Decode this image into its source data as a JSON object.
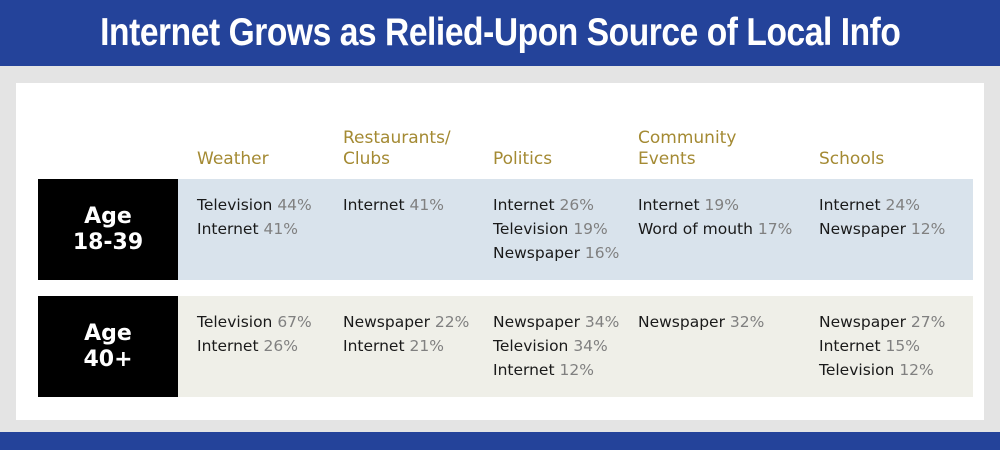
{
  "title": "Internet Grows as Relied-Upon Source of Local Info",
  "colors": {
    "title_bar": "#24439a",
    "header_text": "#a48a33",
    "row1_band": "#d9e3ec",
    "row2_band": "#efefe8",
    "age_box": "#000000",
    "percent_text": "#808080"
  },
  "chart_data": {
    "type": "table",
    "columns": [
      "Weather",
      "Restaurants/\nClubs",
      "Politics",
      "Community\nEvents",
      "Schools"
    ],
    "rows": [
      {
        "label_line1": "Age",
        "label_line2": "18-39",
        "cells": [
          [
            {
              "source": "Television",
              "pct": "44%"
            },
            {
              "source": "Internet",
              "pct": "41%"
            }
          ],
          [
            {
              "source": "Internet",
              "pct": "41%"
            }
          ],
          [
            {
              "source": "Internet",
              "pct": "26%"
            },
            {
              "source": "Television",
              "pct": "19%"
            },
            {
              "source": "Newspaper",
              "pct": "16%"
            }
          ],
          [
            {
              "source": "Internet",
              "pct": "19%"
            },
            {
              "source": "Word of mouth",
              "pct": "17%"
            }
          ],
          [
            {
              "source": "Internet",
              "pct": "24%"
            },
            {
              "source": "Newspaper",
              "pct": "12%"
            }
          ]
        ]
      },
      {
        "label_line1": "Age",
        "label_line2": "40+",
        "cells": [
          [
            {
              "source": "Television",
              "pct": "67%"
            },
            {
              "source": "Internet",
              "pct": "26%"
            }
          ],
          [
            {
              "source": "Newspaper",
              "pct": "22%"
            },
            {
              "source": "Internet",
              "pct": "21%"
            }
          ],
          [
            {
              "source": "Newspaper",
              "pct": "34%"
            },
            {
              "source": "Television",
              "pct": "34%"
            },
            {
              "source": "Internet",
              "pct": "12%"
            }
          ],
          [
            {
              "source": "Newspaper",
              "pct": "32%"
            }
          ],
          [
            {
              "source": "Newspaper",
              "pct": "27%"
            },
            {
              "source": "Internet",
              "pct": "15%"
            },
            {
              "source": "Television",
              "pct": "12%"
            }
          ]
        ]
      }
    ]
  }
}
